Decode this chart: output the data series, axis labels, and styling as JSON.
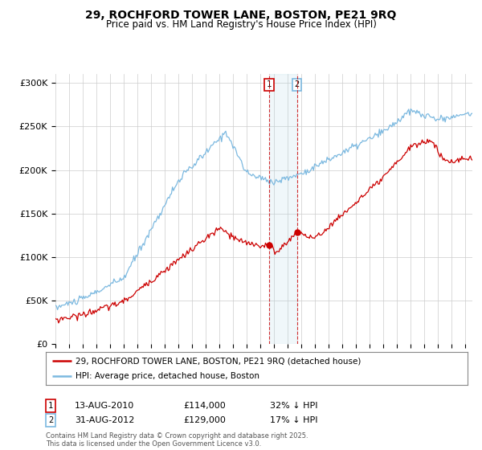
{
  "title": "29, ROCHFORD TOWER LANE, BOSTON, PE21 9RQ",
  "subtitle": "Price paid vs. HM Land Registry's House Price Index (HPI)",
  "xlim_start": 1995.0,
  "xlim_end": 2025.5,
  "ylim": [
    0,
    310000
  ],
  "yticks": [
    0,
    50000,
    100000,
    150000,
    200000,
    250000,
    300000
  ],
  "ytick_labels": [
    "£0",
    "£50K",
    "£100K",
    "£150K",
    "£200K",
    "£250K",
    "£300K"
  ],
  "hpi_color": "#7cb9e0",
  "price_color": "#cc0000",
  "marker1_date": 2010.62,
  "marker1_price": 114000,
  "marker2_date": 2012.67,
  "marker2_price": 129000,
  "legend_line1": "29, ROCHFORD TOWER LANE, BOSTON, PE21 9RQ (detached house)",
  "legend_line2": "HPI: Average price, detached house, Boston",
  "annotation1": [
    "1",
    "13-AUG-2010",
    "£114,000",
    "32% ↓ HPI"
  ],
  "annotation2": [
    "2",
    "31-AUG-2012",
    "£129,000",
    "17% ↓ HPI"
  ],
  "footer": "Contains HM Land Registry data © Crown copyright and database right 2025.\nThis data is licensed under the Open Government Licence v3.0.",
  "background_color": "#ffffff",
  "grid_color": "#cccccc",
  "marker_box1_color": "#cc0000",
  "marker_box2_color": "#7cb9e0"
}
